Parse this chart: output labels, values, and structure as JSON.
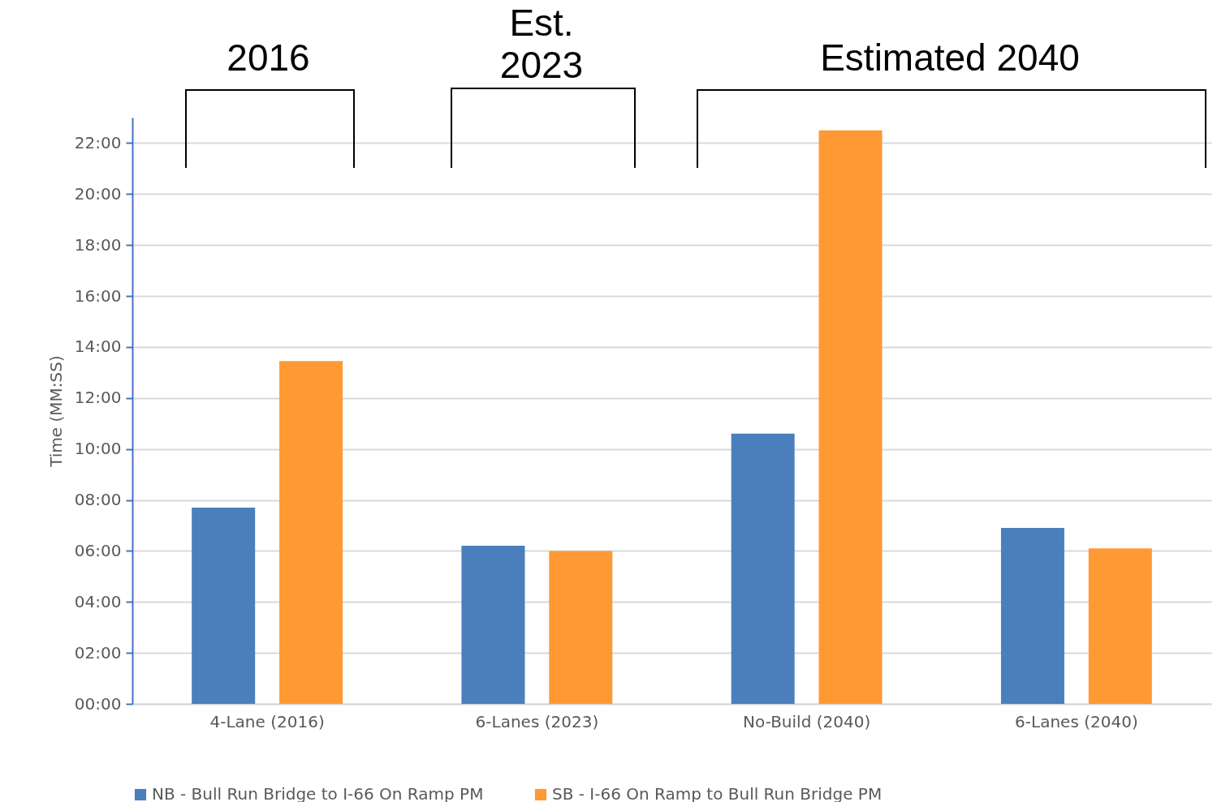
{
  "chart_data": {
    "type": "bar",
    "ylabel": "Time (MM:SS)",
    "categories": [
      "4-Lane (2016)",
      "6-Lanes (2023)",
      "No-Build (2040)",
      "6-Lanes (2040)"
    ],
    "series": [
      {
        "name": "NB - Bull Run Bridge to I-66 On Ramp PM",
        "color": "#4a7fbc",
        "values": [
          7.7,
          6.2,
          10.6,
          6.9
        ]
      },
      {
        "name": "SB - I-66 On Ramp to Bull Run Bridge PM",
        "color": "#ff9933",
        "values": [
          13.45,
          6.0,
          22.5,
          6.1
        ]
      }
    ],
    "ylim": [
      0,
      23
    ],
    "yticks": [
      {
        "value": 0,
        "label": "00:00"
      },
      {
        "value": 2,
        "label": "02:00"
      },
      {
        "value": 4,
        "label": "04:00"
      },
      {
        "value": 6,
        "label": "06:00"
      },
      {
        "value": 8,
        "label": "08:00"
      },
      {
        "value": 10,
        "label": "10:00"
      },
      {
        "value": 12,
        "label": "12:00"
      },
      {
        "value": 14,
        "label": "14:00"
      },
      {
        "value": 16,
        "label": "16:00"
      },
      {
        "value": 18,
        "label": "18:00"
      },
      {
        "value": 20,
        "label": "20:00"
      },
      {
        "value": 22,
        "label": "22:00"
      }
    ],
    "grid": "y",
    "legend": "bottom",
    "annotations": [
      "2016",
      "Est. 2023",
      "Estimated 2040"
    ]
  }
}
